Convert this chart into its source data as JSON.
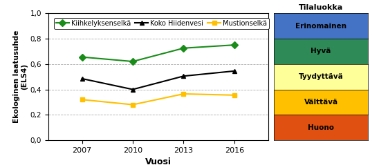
{
  "years": [
    2007,
    2010,
    2013,
    2016
  ],
  "kiihkelyksenselka": [
    0.655,
    0.62,
    0.725,
    0.75
  ],
  "koko_hiidenvesi": [
    0.485,
    0.4,
    0.505,
    0.545
  ],
  "mustionselka": [
    0.32,
    0.28,
    0.365,
    0.355
  ],
  "line_colors": {
    "kiihkelyksenselka": "#1a8c1a",
    "koko_hiidenvesi": "#000000",
    "mustionselka": "#ffc000"
  },
  "xlabel": "Vuosi",
  "ylabel": "Ekologinen laatusuhde\n(ELS4)",
  "ylim": [
    0.0,
    1.0
  ],
  "yticks": [
    0.0,
    0.2,
    0.4,
    0.6,
    0.8,
    1.0
  ],
  "ytick_labels": [
    "0,0",
    "0,2",
    "0,4",
    "0,6",
    "0,8",
    "1,0"
  ],
  "legend_labels": [
    "Kiihkelyksenselkä",
    "Koko Hiidenvesi",
    "Mustionselkä"
  ],
  "tilaluokka_title": "Tilaluokka",
  "tilaluokka_labels": [
    "Erinomainen",
    "Hyvä",
    "Tyydyttävä",
    "Välttävä",
    "Huono"
  ],
  "tilaluokka_colors": [
    "#4472c4",
    "#2e8b57",
    "#ffff99",
    "#ffc000",
    "#e05010"
  ],
  "background_color": "#ffffff"
}
